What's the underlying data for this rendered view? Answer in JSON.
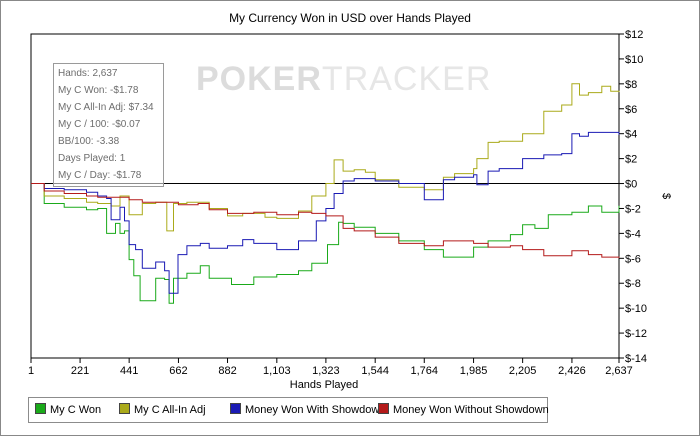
{
  "chart_data": {
    "type": "line",
    "title": "My Currency Won in USD over Hands Played",
    "xlabel": "Hands Played",
    "ylabel": "$",
    "xlim": [
      1,
      2637
    ],
    "ylim": [
      -14,
      12
    ],
    "x_ticks": [
      1,
      221,
      441,
      662,
      882,
      1103,
      1323,
      1544,
      1764,
      1985,
      2205,
      2426,
      2637
    ],
    "x_tick_labels": [
      "1",
      "221",
      "441",
      "662",
      "882",
      "1,103",
      "1,323",
      "1,544",
      "1,764",
      "1,985",
      "2,205",
      "2,426",
      "2,637"
    ],
    "y_ticks": [
      12,
      10,
      8,
      6,
      4,
      2,
      0,
      -2,
      -4,
      -6,
      -8,
      -10,
      -12,
      -14
    ],
    "y_tick_labels": [
      "$12",
      "$10",
      "$8",
      "$6",
      "$4",
      "$2",
      "$0",
      "$-2",
      "$-4",
      "$-6",
      "$-8",
      "$-10",
      "$-12",
      "$-14"
    ],
    "grid": false,
    "legend_position": "bottom",
    "series": [
      {
        "name": "My C Won",
        "color": "#1aaa1a",
        "points": [
          [
            1,
            0
          ],
          [
            60,
            -1.6
          ],
          [
            150,
            -1.9
          ],
          [
            250,
            -2.1
          ],
          [
            300,
            -2.0
          ],
          [
            340,
            -4.0
          ],
          [
            380,
            -3.2
          ],
          [
            400,
            -4.0
          ],
          [
            420,
            -3.8
          ],
          [
            441,
            -6.1
          ],
          [
            462,
            -7.4
          ],
          [
            490,
            -9.4
          ],
          [
            560,
            -7.6
          ],
          [
            600,
            -7.7
          ],
          [
            620,
            -9.6
          ],
          [
            640,
            -7.6
          ],
          [
            700,
            -7.2
          ],
          [
            760,
            -6.6
          ],
          [
            800,
            -7.6
          ],
          [
            900,
            -8.1
          ],
          [
            1000,
            -7.5
          ],
          [
            1103,
            -7.3
          ],
          [
            1200,
            -7.0
          ],
          [
            1260,
            -6.4
          ],
          [
            1330,
            -4.9
          ],
          [
            1380,
            -3.1
          ],
          [
            1400,
            -3.2
          ],
          [
            1450,
            -3.5
          ],
          [
            1544,
            -4.0
          ],
          [
            1650,
            -4.6
          ],
          [
            1764,
            -5.3
          ],
          [
            1850,
            -5.9
          ],
          [
            1985,
            -5.1
          ],
          [
            2050,
            -4.6
          ],
          [
            2150,
            -4.1
          ],
          [
            2205,
            -3.3
          ],
          [
            2260,
            -3.6
          ],
          [
            2320,
            -2.5
          ],
          [
            2426,
            -2.3
          ],
          [
            2500,
            -1.8
          ],
          [
            2560,
            -2.3
          ],
          [
            2637,
            -1.78
          ]
        ]
      },
      {
        "name": "My C All-In Adj",
        "color": "#aaaa1a",
        "points": [
          [
            1,
            0
          ],
          [
            60,
            -1.0
          ],
          [
            150,
            -1.2
          ],
          [
            250,
            -1.5
          ],
          [
            300,
            -1.6
          ],
          [
            340,
            -1.6
          ],
          [
            360,
            -1.8
          ],
          [
            400,
            -1.0
          ],
          [
            441,
            -2.5
          ],
          [
            500,
            -1.6
          ],
          [
            560,
            -1.5
          ],
          [
            610,
            -3.8
          ],
          [
            640,
            -1.6
          ],
          [
            700,
            -1.5
          ],
          [
            760,
            -1.5
          ],
          [
            800,
            -2.0
          ],
          [
            882,
            -2.6
          ],
          [
            950,
            -2.4
          ],
          [
            1050,
            -2.7
          ],
          [
            1103,
            -2.8
          ],
          [
            1200,
            -2.2
          ],
          [
            1260,
            -1.0
          ],
          [
            1323,
            0.0
          ],
          [
            1360,
            1.9
          ],
          [
            1400,
            1.0
          ],
          [
            1450,
            1.1
          ],
          [
            1500,
            0.9
          ],
          [
            1544,
            0.3
          ],
          [
            1650,
            -0.3
          ],
          [
            1764,
            -0.5
          ],
          [
            1850,
            0.5
          ],
          [
            1900,
            0.8
          ],
          [
            1985,
            1.2
          ],
          [
            2000,
            2.0
          ],
          [
            2050,
            3.3
          ],
          [
            2100,
            3.4
          ],
          [
            2205,
            4.0
          ],
          [
            2300,
            5.8
          ],
          [
            2380,
            6.3
          ],
          [
            2426,
            8.0
          ],
          [
            2460,
            7.1
          ],
          [
            2500,
            7.3
          ],
          [
            2560,
            7.8
          ],
          [
            2600,
            7.4
          ],
          [
            2637,
            7.34
          ]
        ]
      },
      {
        "name": "Money Won With Showdown",
        "color": "#1a1ab4",
        "points": [
          [
            1,
            0
          ],
          [
            60,
            -0.4
          ],
          [
            150,
            -0.5
          ],
          [
            250,
            -0.7
          ],
          [
            300,
            -1.0
          ],
          [
            340,
            -1.2
          ],
          [
            360,
            -2.9
          ],
          [
            400,
            -1.9
          ],
          [
            420,
            -3.0
          ],
          [
            441,
            -4.9
          ],
          [
            470,
            -5.3
          ],
          [
            500,
            -6.8
          ],
          [
            560,
            -6.3
          ],
          [
            600,
            -7.0
          ],
          [
            620,
            -8.8
          ],
          [
            660,
            -5.7
          ],
          [
            700,
            -5.0
          ],
          [
            760,
            -4.8
          ],
          [
            800,
            -5.2
          ],
          [
            882,
            -5.0
          ],
          [
            950,
            -4.5
          ],
          [
            1000,
            -4.8
          ],
          [
            1103,
            -5.3
          ],
          [
            1200,
            -4.6
          ],
          [
            1280,
            -3.0
          ],
          [
            1323,
            -2.0
          ],
          [
            1360,
            -0.8
          ],
          [
            1400,
            0.2
          ],
          [
            1450,
            0.4
          ],
          [
            1544,
            0.2
          ],
          [
            1650,
            0.0
          ],
          [
            1764,
            -1.3
          ],
          [
            1850,
            0.3
          ],
          [
            1900,
            0.5
          ],
          [
            1985,
            0.7
          ],
          [
            2000,
            -0.1
          ],
          [
            2050,
            1.0
          ],
          [
            2100,
            1.2
          ],
          [
            2205,
            2.0
          ],
          [
            2300,
            2.3
          ],
          [
            2380,
            2.4
          ],
          [
            2426,
            4.0
          ],
          [
            2460,
            3.8
          ],
          [
            2500,
            4.1
          ],
          [
            2560,
            4.1
          ],
          [
            2637,
            3.9
          ]
        ]
      },
      {
        "name": "Money Won Without Showdown",
        "color": "#b41a1a",
        "points": [
          [
            1,
            0
          ],
          [
            60,
            -0.6
          ],
          [
            150,
            -0.8
          ],
          [
            250,
            -1.0
          ],
          [
            300,
            -1.1
          ],
          [
            441,
            -1.3
          ],
          [
            500,
            -1.5
          ],
          [
            560,
            -1.5
          ],
          [
            620,
            -1.5
          ],
          [
            662,
            -1.7
          ],
          [
            750,
            -1.6
          ],
          [
            800,
            -2.1
          ],
          [
            882,
            -2.4
          ],
          [
            1000,
            -2.3
          ],
          [
            1103,
            -2.5
          ],
          [
            1200,
            -2.3
          ],
          [
            1260,
            -2.4
          ],
          [
            1323,
            -2.6
          ],
          [
            1400,
            -3.6
          ],
          [
            1450,
            -3.8
          ],
          [
            1544,
            -4.3
          ],
          [
            1650,
            -4.8
          ],
          [
            1764,
            -5.0
          ],
          [
            1850,
            -4.6
          ],
          [
            1985,
            -4.8
          ],
          [
            2050,
            -5.1
          ],
          [
            2150,
            -5.0
          ],
          [
            2205,
            -5.3
          ],
          [
            2300,
            -5.8
          ],
          [
            2426,
            -5.4
          ],
          [
            2500,
            -5.7
          ],
          [
            2560,
            -5.9
          ],
          [
            2637,
            -6.0
          ]
        ]
      }
    ]
  },
  "stats_box": {
    "lines": [
      "Hands: 2,637",
      "My C Won: -$1.78",
      "My C All-In Adj: $7.34",
      "My C / 100: -$0.07",
      "BB/100: -3.38",
      "Days Played: 1",
      "My C / Day: -$1.78"
    ]
  },
  "watermark": {
    "part1": "POKER",
    "part2": "TRACKER"
  }
}
